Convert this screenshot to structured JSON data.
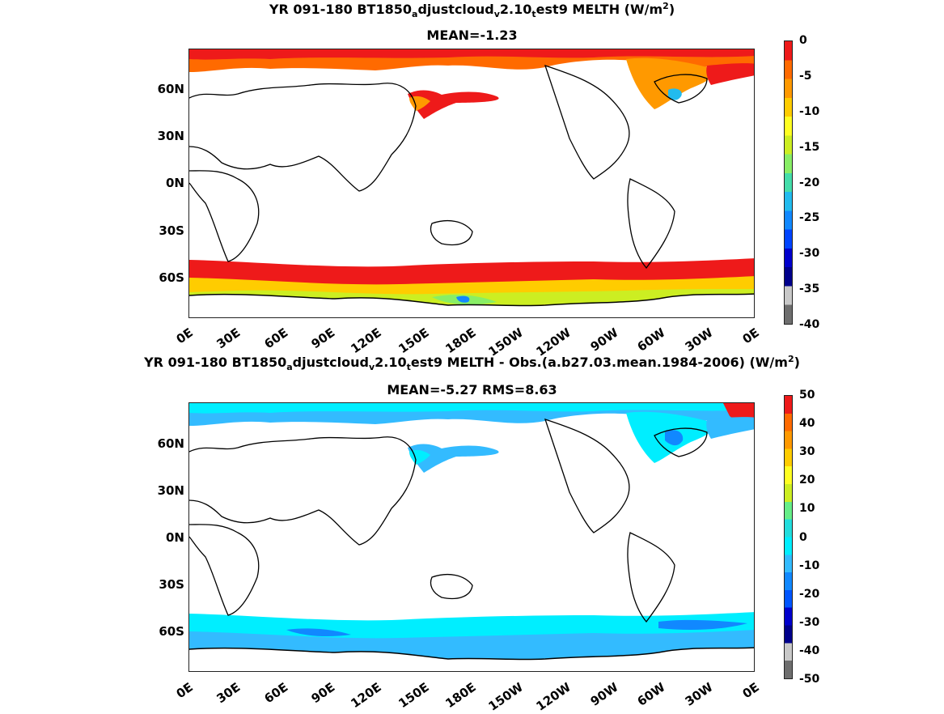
{
  "panels": [
    {
      "title_line1_parts": [
        "YR 091-180 BT1850",
        "a",
        "djustcloud",
        "v",
        "2.10",
        "t",
        "est9  MELTH (W/m",
        "2",
        ")"
      ],
      "title_line2": "MEAN=-1.23",
      "latitude_labels": [
        "60N",
        "30N",
        "0N",
        "30S",
        "60S"
      ],
      "longitude_labels": [
        "0E",
        "30E",
        "60E",
        "90E",
        "120E",
        "150E",
        "180E",
        "150W",
        "120W",
        "90W",
        "60W",
        "30W",
        "0E"
      ],
      "colorbar_ticks": [
        "0",
        "-5",
        "-10",
        "-15",
        "-20",
        "-25",
        "-30",
        "-35",
        "-40"
      ]
    },
    {
      "title_line1_parts": [
        "YR 091-180 BT1850",
        "a",
        "djustcloud",
        "v",
        "2.10",
        "t",
        "est9 MELTH - Obs.(a.b27.03.mean.1984-2006) (W/m",
        "2",
        ")"
      ],
      "title_line2": "MEAN=-5.27 RMS=8.63",
      "latitude_labels": [
        "60N",
        "30N",
        "0N",
        "30S",
        "60S"
      ],
      "longitude_labels": [
        "0E",
        "30E",
        "60E",
        "90E",
        "120E",
        "150E",
        "180E",
        "150W",
        "120W",
        "90W",
        "60W",
        "30W",
        "0E"
      ],
      "colorbar_ticks": [
        "50",
        "40",
        "30",
        "20",
        "10",
        "0",
        "-10",
        "-20",
        "-30",
        "-40",
        "-50"
      ]
    }
  ],
  "colors": {
    "top_colorbar": [
      "#ee1a1a",
      "#ff6a00",
      "#ff9900",
      "#ffcc00",
      "#ffff22",
      "#ccee22",
      "#88ee66",
      "#44ddaa",
      "#22bbee",
      "#1188ff",
      "#0044ff",
      "#0000cc",
      "#00008b",
      "#c8c8c8",
      "#6e6e6e"
    ],
    "bottom_colorbar": [
      "#ee1a1a",
      "#ff6a00",
      "#ff9900",
      "#ffcc00",
      "#ffff22",
      "#ccee22",
      "#66ee88",
      "#22dddd",
      "#00eeff",
      "#33bbff",
      "#1188ff",
      "#0055ff",
      "#0000cc",
      "#00008b",
      "#c8c8c8",
      "#6e6e6e"
    ]
  }
}
